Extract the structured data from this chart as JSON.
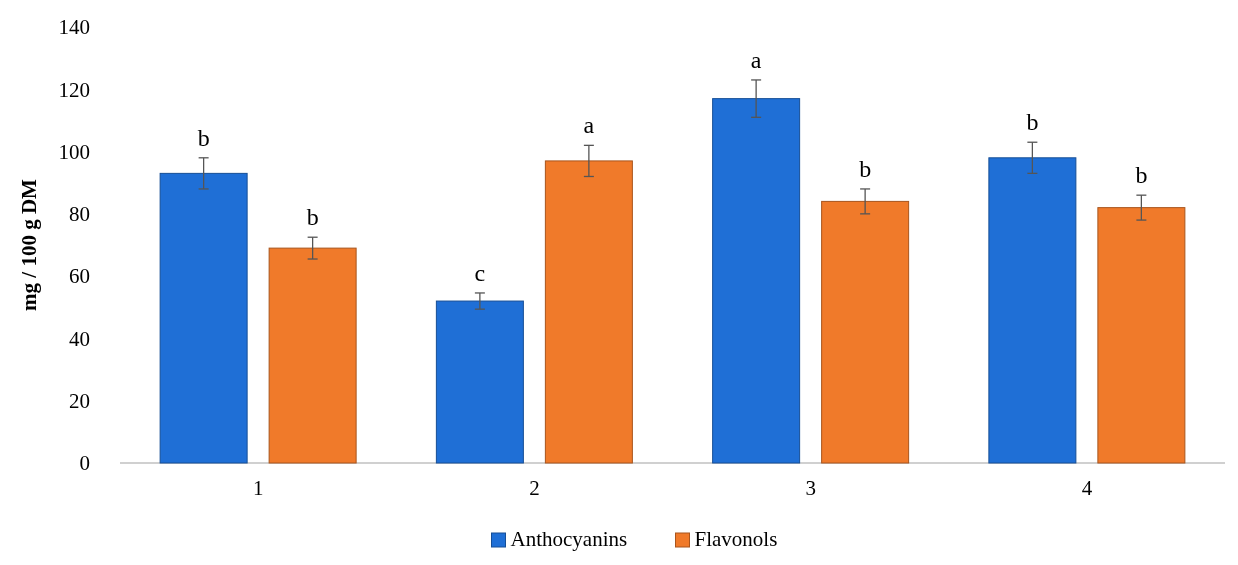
{
  "chart_data": {
    "type": "bar",
    "ylabel": "mg / 100 g DM",
    "categories": [
      "1",
      "2",
      "3",
      "4"
    ],
    "series": [
      {
        "name": "Anthocyanins",
        "color": "#1f6fd6",
        "values": [
          93,
          52,
          117,
          98
        ],
        "errors": [
          5,
          2.6,
          6,
          5
        ]
      },
      {
        "name": "Flavonols",
        "color": "#f07a2a",
        "values": [
          69,
          97,
          84,
          82
        ],
        "errors": [
          3.5,
          5,
          4,
          4
        ]
      }
    ],
    "ylim": [
      0,
      140
    ],
    "yticks": [
      0,
      20,
      40,
      60,
      80,
      100,
      120,
      140
    ],
    "grid": false,
    "legend": "bottom",
    "annotations": [
      "b",
      "b",
      "c",
      "a",
      "a",
      "b",
      "b",
      "b"
    ]
  }
}
